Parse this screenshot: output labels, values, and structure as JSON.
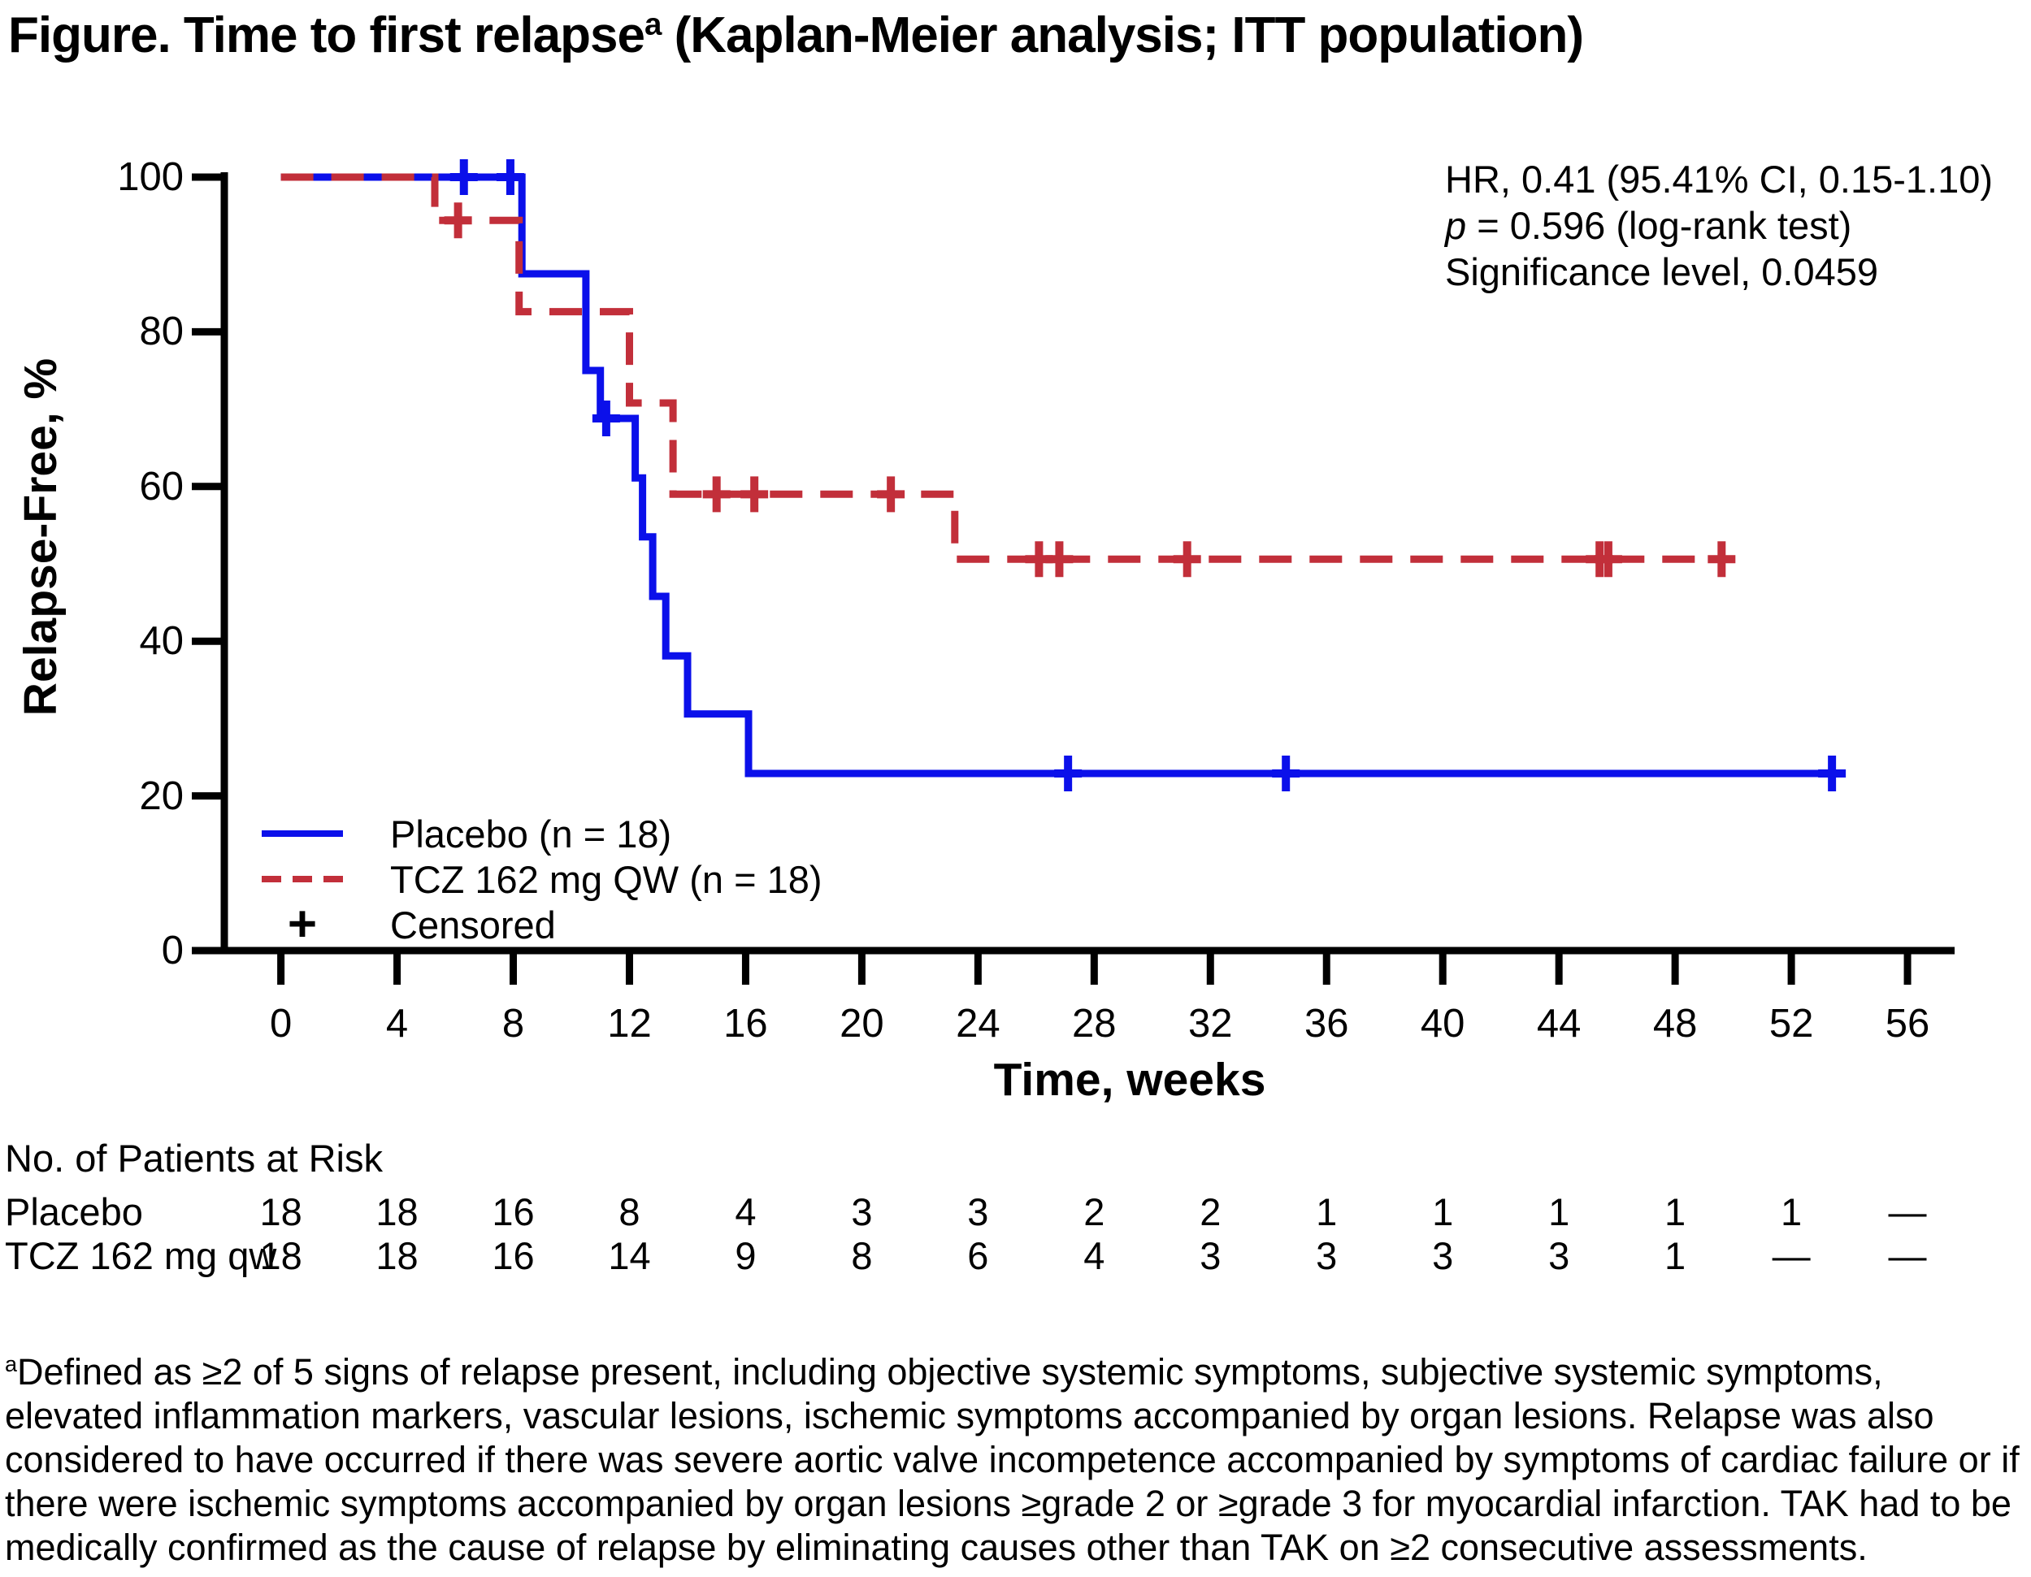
{
  "title": {
    "text": "Figure. Time to first relapse",
    "superscript": "a",
    "suffix": " (Kaplan-Meier analysis; ITT population)"
  },
  "stats": {
    "hr": "HR, 0.41 (95.41% CI, 0.15-1.10)",
    "p_italic": "p",
    "p_rest": " = 0.596 (log-rank test)",
    "significance": "Significance level, 0.0459"
  },
  "y_axis": {
    "label": "Relapse-Free, %",
    "ticks": [
      100,
      80,
      60,
      40,
      20,
      0
    ]
  },
  "x_axis": {
    "label": "Time, weeks",
    "ticks": [
      0,
      4,
      8,
      12,
      16,
      20,
      24,
      28,
      32,
      36,
      40,
      44,
      48,
      52,
      56
    ]
  },
  "legend": {
    "items": [
      {
        "label": "Placebo (n = 18)",
        "swatch": "solid-blue-line"
      },
      {
        "label": "TCZ 162 mg QW (n = 18)",
        "swatch": "dashed-red-line"
      },
      {
        "label": "Censored",
        "swatch": "black-plus"
      }
    ]
  },
  "colors": {
    "placebo_blue": "#0b10ea",
    "tcz_red": "#c22f3a",
    "axis_black": "#000000"
  },
  "risk_table": {
    "header": "No. of Patients at Risk",
    "weeks": [
      0,
      4,
      8,
      12,
      16,
      20,
      24,
      28,
      32,
      36,
      40,
      44,
      48,
      52,
      56
    ],
    "rows": [
      {
        "label": "Placebo",
        "values": [
          "18",
          "18",
          "16",
          "8",
          "4",
          "3",
          "3",
          "2",
          "2",
          "1",
          "1",
          "1",
          "1",
          "1",
          "—"
        ]
      },
      {
        "label": "TCZ 162 mg qw",
        "values": [
          "18",
          "18",
          "16",
          "14",
          "9",
          "8",
          "6",
          "4",
          "3",
          "3",
          "3",
          "3",
          "1",
          "—",
          "—"
        ]
      }
    ]
  },
  "footnote": {
    "marker": "a",
    "text": "Defined as ≥2 of 5 signs of relapse present, including objective systemic symptoms, subjective systemic symptoms, elevated inflammation markers, vascular lesions, ischemic symptoms accompanied by organ lesions. Relapse was also considered to have occurred if there was severe aortic valve incompetence accompanied by symptoms of cardiac failure or if there were ischemic symptoms accompanied by organ lesions ≥grade 2 or ≥grade 3 for myocardial infarction. TAK had to be medically confirmed as the cause of relapse by eliminating causes other than TAK on ≥2 consecutive assessments."
  },
  "chart_data": {
    "type": "line",
    "subtype": "kaplan-meier-step",
    "title": "Time to first relapse (Kaplan-Meier analysis; ITT population)",
    "xlabel": "Time, weeks",
    "ylabel": "Relapse-Free, %",
    "xlim": [
      0,
      56
    ],
    "ylim": [
      0,
      100
    ],
    "x_ticks": [
      0,
      4,
      8,
      12,
      16,
      20,
      24,
      28,
      32,
      36,
      40,
      44,
      48,
      52,
      56
    ],
    "y_ticks": [
      0,
      20,
      40,
      60,
      80,
      100
    ],
    "grid": false,
    "legend_position": "inside-lower-left",
    "series": [
      {
        "name": "Placebo (n = 18)",
        "color": "#0b10ea",
        "line_style": "solid",
        "steps": [
          [
            0,
            100
          ],
          [
            8.3,
            100
          ],
          [
            8.3,
            87.5
          ],
          [
            10.5,
            87.5
          ],
          [
            10.5,
            75.0
          ],
          [
            11.0,
            75.0
          ],
          [
            11.0,
            68.8
          ],
          [
            12.2,
            68.8
          ],
          [
            12.2,
            61.1
          ],
          [
            12.45,
            61.1
          ],
          [
            12.45,
            53.5
          ],
          [
            12.8,
            53.5
          ],
          [
            12.8,
            45.8
          ],
          [
            13.25,
            45.8
          ],
          [
            13.25,
            38.1
          ],
          [
            14.0,
            38.1
          ],
          [
            14.0,
            30.6
          ],
          [
            16.1,
            30.6
          ],
          [
            16.1,
            22.9
          ],
          [
            53.6,
            22.9
          ]
        ],
        "censor_marks": [
          [
            6.3,
            100
          ],
          [
            7.9,
            100
          ],
          [
            11.2,
            68.8
          ],
          [
            27.1,
            22.9
          ],
          [
            34.6,
            22.9
          ],
          [
            53.4,
            22.9
          ]
        ]
      },
      {
        "name": "TCZ 162 mg QW (n = 18)",
        "color": "#c22f3a",
        "line_style": "dashed",
        "steps": [
          [
            0,
            100
          ],
          [
            5.3,
            100
          ],
          [
            5.3,
            94.4
          ],
          [
            8.2,
            94.4
          ],
          [
            8.2,
            82.6
          ],
          [
            12.0,
            82.6
          ],
          [
            12.0,
            70.8
          ],
          [
            13.5,
            70.8
          ],
          [
            13.5,
            59.0
          ],
          [
            23.2,
            59.0
          ],
          [
            23.2,
            50.6
          ],
          [
            49.9,
            50.6
          ]
        ],
        "censor_marks": [
          [
            6.1,
            94.4
          ],
          [
            15.0,
            59.0
          ],
          [
            16.3,
            59.0
          ],
          [
            21.0,
            59.0
          ],
          [
            26.1,
            50.6
          ],
          [
            26.8,
            50.6
          ],
          [
            31.2,
            50.6
          ],
          [
            45.4,
            50.6
          ],
          [
            45.7,
            50.6
          ],
          [
            49.6,
            50.6
          ]
        ]
      }
    ],
    "annotations": [
      "HR, 0.41 (95.41% CI, 0.15-1.10)",
      "p = 0.596 (log-rank test)",
      "Significance level, 0.0459"
    ]
  }
}
